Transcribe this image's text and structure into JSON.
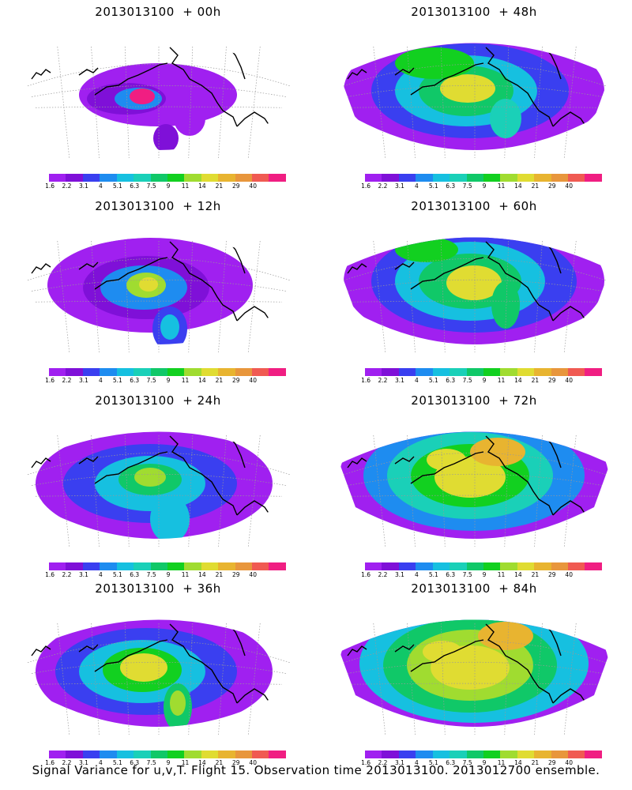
{
  "caption": "Signal Variance for u,v,T. Flight 15. Observation time 2013013100. 2013012700 ensemble.",
  "colorbar": {
    "ticks": [
      "1.6",
      "2.2",
      "3.1",
      "4",
      "5.1",
      "6.3",
      "7.5",
      "9",
      "11",
      "14",
      "21",
      "29",
      "40"
    ],
    "colors": [
      "#a020f0",
      "#7f10d8",
      "#3a3ff0",
      "#1e8cf0",
      "#16c0e0",
      "#1ad0b8",
      "#10c868",
      "#12d020",
      "#a0dc30",
      "#e0dc32",
      "#e8b430",
      "#e8963c",
      "#f05a52",
      "#f01e82"
    ]
  },
  "chart_data": [
    {
      "type": "heatmap",
      "title": "2013013100  + 00h",
      "forecast_hour": 0,
      "level_max_label": "40",
      "colorbar_ticks": [
        "1.6",
        "2.2",
        "3.1",
        "4",
        "5.1",
        "6.3",
        "7.5",
        "9",
        "11",
        "14",
        "21",
        "29",
        "40"
      ]
    },
    {
      "type": "heatmap",
      "title": "2013013100  + 48h",
      "forecast_hour": 48,
      "level_max_label": "14",
      "colorbar_ticks": [
        "1.6",
        "2.2",
        "3.1",
        "4",
        "5.1",
        "6.3",
        "7.5",
        "9",
        "11",
        "14",
        "21",
        "29",
        "40"
      ]
    },
    {
      "type": "heatmap",
      "title": "2013013100  + 12h",
      "forecast_hour": 12,
      "level_max_label": "11",
      "colorbar_ticks": [
        "1.6",
        "2.2",
        "3.1",
        "4",
        "5.1",
        "6.3",
        "7.5",
        "9",
        "11",
        "14",
        "21",
        "29",
        "40"
      ]
    },
    {
      "type": "heatmap",
      "title": "2013013100  + 60h",
      "forecast_hour": 60,
      "level_max_label": "14",
      "colorbar_ticks": [
        "1.6",
        "2.2",
        "3.1",
        "4",
        "5.1",
        "6.3",
        "7.5",
        "9",
        "11",
        "14",
        "21",
        "29",
        "40"
      ]
    },
    {
      "type": "heatmap",
      "title": "2013013100  + 24h",
      "forecast_hour": 24,
      "level_max_label": "11",
      "colorbar_ticks": [
        "1.6",
        "2.2",
        "3.1",
        "4",
        "5.1",
        "6.3",
        "7.5",
        "9",
        "11",
        "14",
        "21",
        "29",
        "40"
      ]
    },
    {
      "type": "heatmap",
      "title": "2013013100  + 72h",
      "forecast_hour": 72,
      "level_max_label": "14",
      "colorbar_ticks": [
        "1.6",
        "2.2",
        "3.1",
        "4",
        "5.1",
        "6.3",
        "7.5",
        "9",
        "11",
        "14",
        "21",
        "29",
        "40"
      ]
    },
    {
      "type": "heatmap",
      "title": "2013013100  + 36h",
      "forecast_hour": 36,
      "level_max_label": "11",
      "colorbar_ticks": [
        "1.6",
        "2.2",
        "3.1",
        "4",
        "5.1",
        "6.3",
        "7.5",
        "9",
        "11",
        "14",
        "21",
        "29",
        "40"
      ]
    },
    {
      "type": "heatmap",
      "title": "2013013100  + 84h",
      "forecast_hour": 84,
      "level_max_label": "14",
      "colorbar_ticks": [
        "1.6",
        "2.2",
        "3.1",
        "4",
        "5.1",
        "6.3",
        "7.5",
        "9",
        "11",
        "14",
        "21",
        "29",
        "40"
      ]
    }
  ]
}
